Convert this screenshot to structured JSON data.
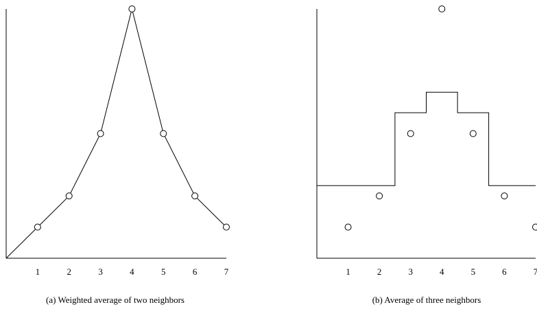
{
  "chart_data": [
    {
      "type": "line",
      "caption": "(a) Weighted average of two neighbors",
      "x": [
        1,
        2,
        3,
        4,
        5,
        6,
        7
      ],
      "tick_labels": [
        "1",
        "2",
        "3",
        "4",
        "5",
        "6",
        "7"
      ],
      "points": [
        1,
        2,
        4,
        8,
        4,
        2,
        1
      ],
      "line": {
        "x": [
          0,
          1,
          2,
          3,
          4,
          5,
          6,
          7
        ],
        "y": [
          0,
          1,
          2,
          4,
          8,
          4,
          2,
          1
        ]
      },
      "xlim": [
        0,
        7
      ],
      "ylim": [
        0,
        8
      ],
      "grid": false
    },
    {
      "type": "line",
      "caption": "(b) Average of three neighbors",
      "x": [
        1,
        2,
        3,
        4,
        5,
        6,
        7
      ],
      "tick_labels": [
        "1",
        "2",
        "3",
        "4",
        "5",
        "6",
        "7"
      ],
      "points": [
        1,
        2,
        4,
        8,
        4,
        2,
        1
      ],
      "step_line": {
        "x": [
          0,
          2.5,
          2.5,
          3.5,
          3.5,
          4.5,
          4.5,
          5.5,
          5.5,
          7
        ],
        "y": [
          2.33,
          2.33,
          4.67,
          4.67,
          5.33,
          5.33,
          4.67,
          4.67,
          2.33,
          2.33
        ]
      },
      "xlim": [
        0,
        7
      ],
      "ylim": [
        0,
        8
      ],
      "grid": false
    }
  ]
}
